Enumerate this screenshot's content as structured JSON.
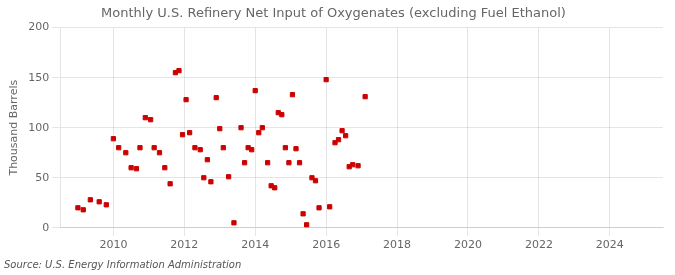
{
  "chart_data": {
    "type": "scatter",
    "title": "Monthly U.S. Refinery Net Input of Oxygenates (excluding Fuel Ethanol)",
    "ylabel": "Thousand Barrels",
    "source": "Source: U.S. Energy Information Administration",
    "color": "#cc0000",
    "marker": "square",
    "grid": true,
    "xlim": [
      2008.5,
      2025.5
    ],
    "ylim": [
      0,
      200
    ],
    "xticks": [
      2010,
      2012,
      2014,
      2016,
      2018,
      2020,
      2022,
      2024
    ],
    "yticks": [
      0,
      50,
      100,
      150,
      200
    ],
    "x": [
      2009.0,
      2009.15,
      2009.35,
      2009.6,
      2009.8,
      2010.0,
      2010.15,
      2010.35,
      2010.5,
      2010.65,
      2010.75,
      2010.9,
      2011.05,
      2011.15,
      2011.3,
      2011.45,
      2011.6,
      2011.75,
      2011.85,
      2011.95,
      2012.05,
      2012.15,
      2012.3,
      2012.45,
      2012.55,
      2012.65,
      2012.75,
      2012.9,
      2013.0,
      2013.1,
      2013.25,
      2013.4,
      2013.6,
      2013.7,
      2013.8,
      2013.9,
      2014.0,
      2014.1,
      2014.2,
      2014.35,
      2014.45,
      2014.55,
      2014.65,
      2014.75,
      2014.85,
      2014.95,
      2015.05,
      2015.15,
      2015.25,
      2015.35,
      2015.45,
      2015.6,
      2015.7,
      2015.8,
      2016.0,
      2016.1,
      2016.25,
      2016.35,
      2016.45,
      2016.55,
      2016.65,
      2016.75,
      2016.9,
      2017.1
    ],
    "values": [
      20,
      18,
      28,
      26,
      23,
      89,
      80,
      75,
      60,
      59,
      80,
      110,
      108,
      80,
      75,
      60,
      44,
      155,
      157,
      93,
      128,
      95,
      80,
      78,
      50,
      68,
      46,
      130,
      99,
      80,
      51,
      5,
      100,
      65,
      80,
      78,
      137,
      95,
      100,
      65,
      42,
      40,
      115,
      113,
      80,
      65,
      133,
      79,
      65,
      14,
      3,
      50,
      47,
      20,
      148,
      21,
      85,
      88,
      97,
      92,
      61,
      63,
      62,
      131
    ]
  }
}
